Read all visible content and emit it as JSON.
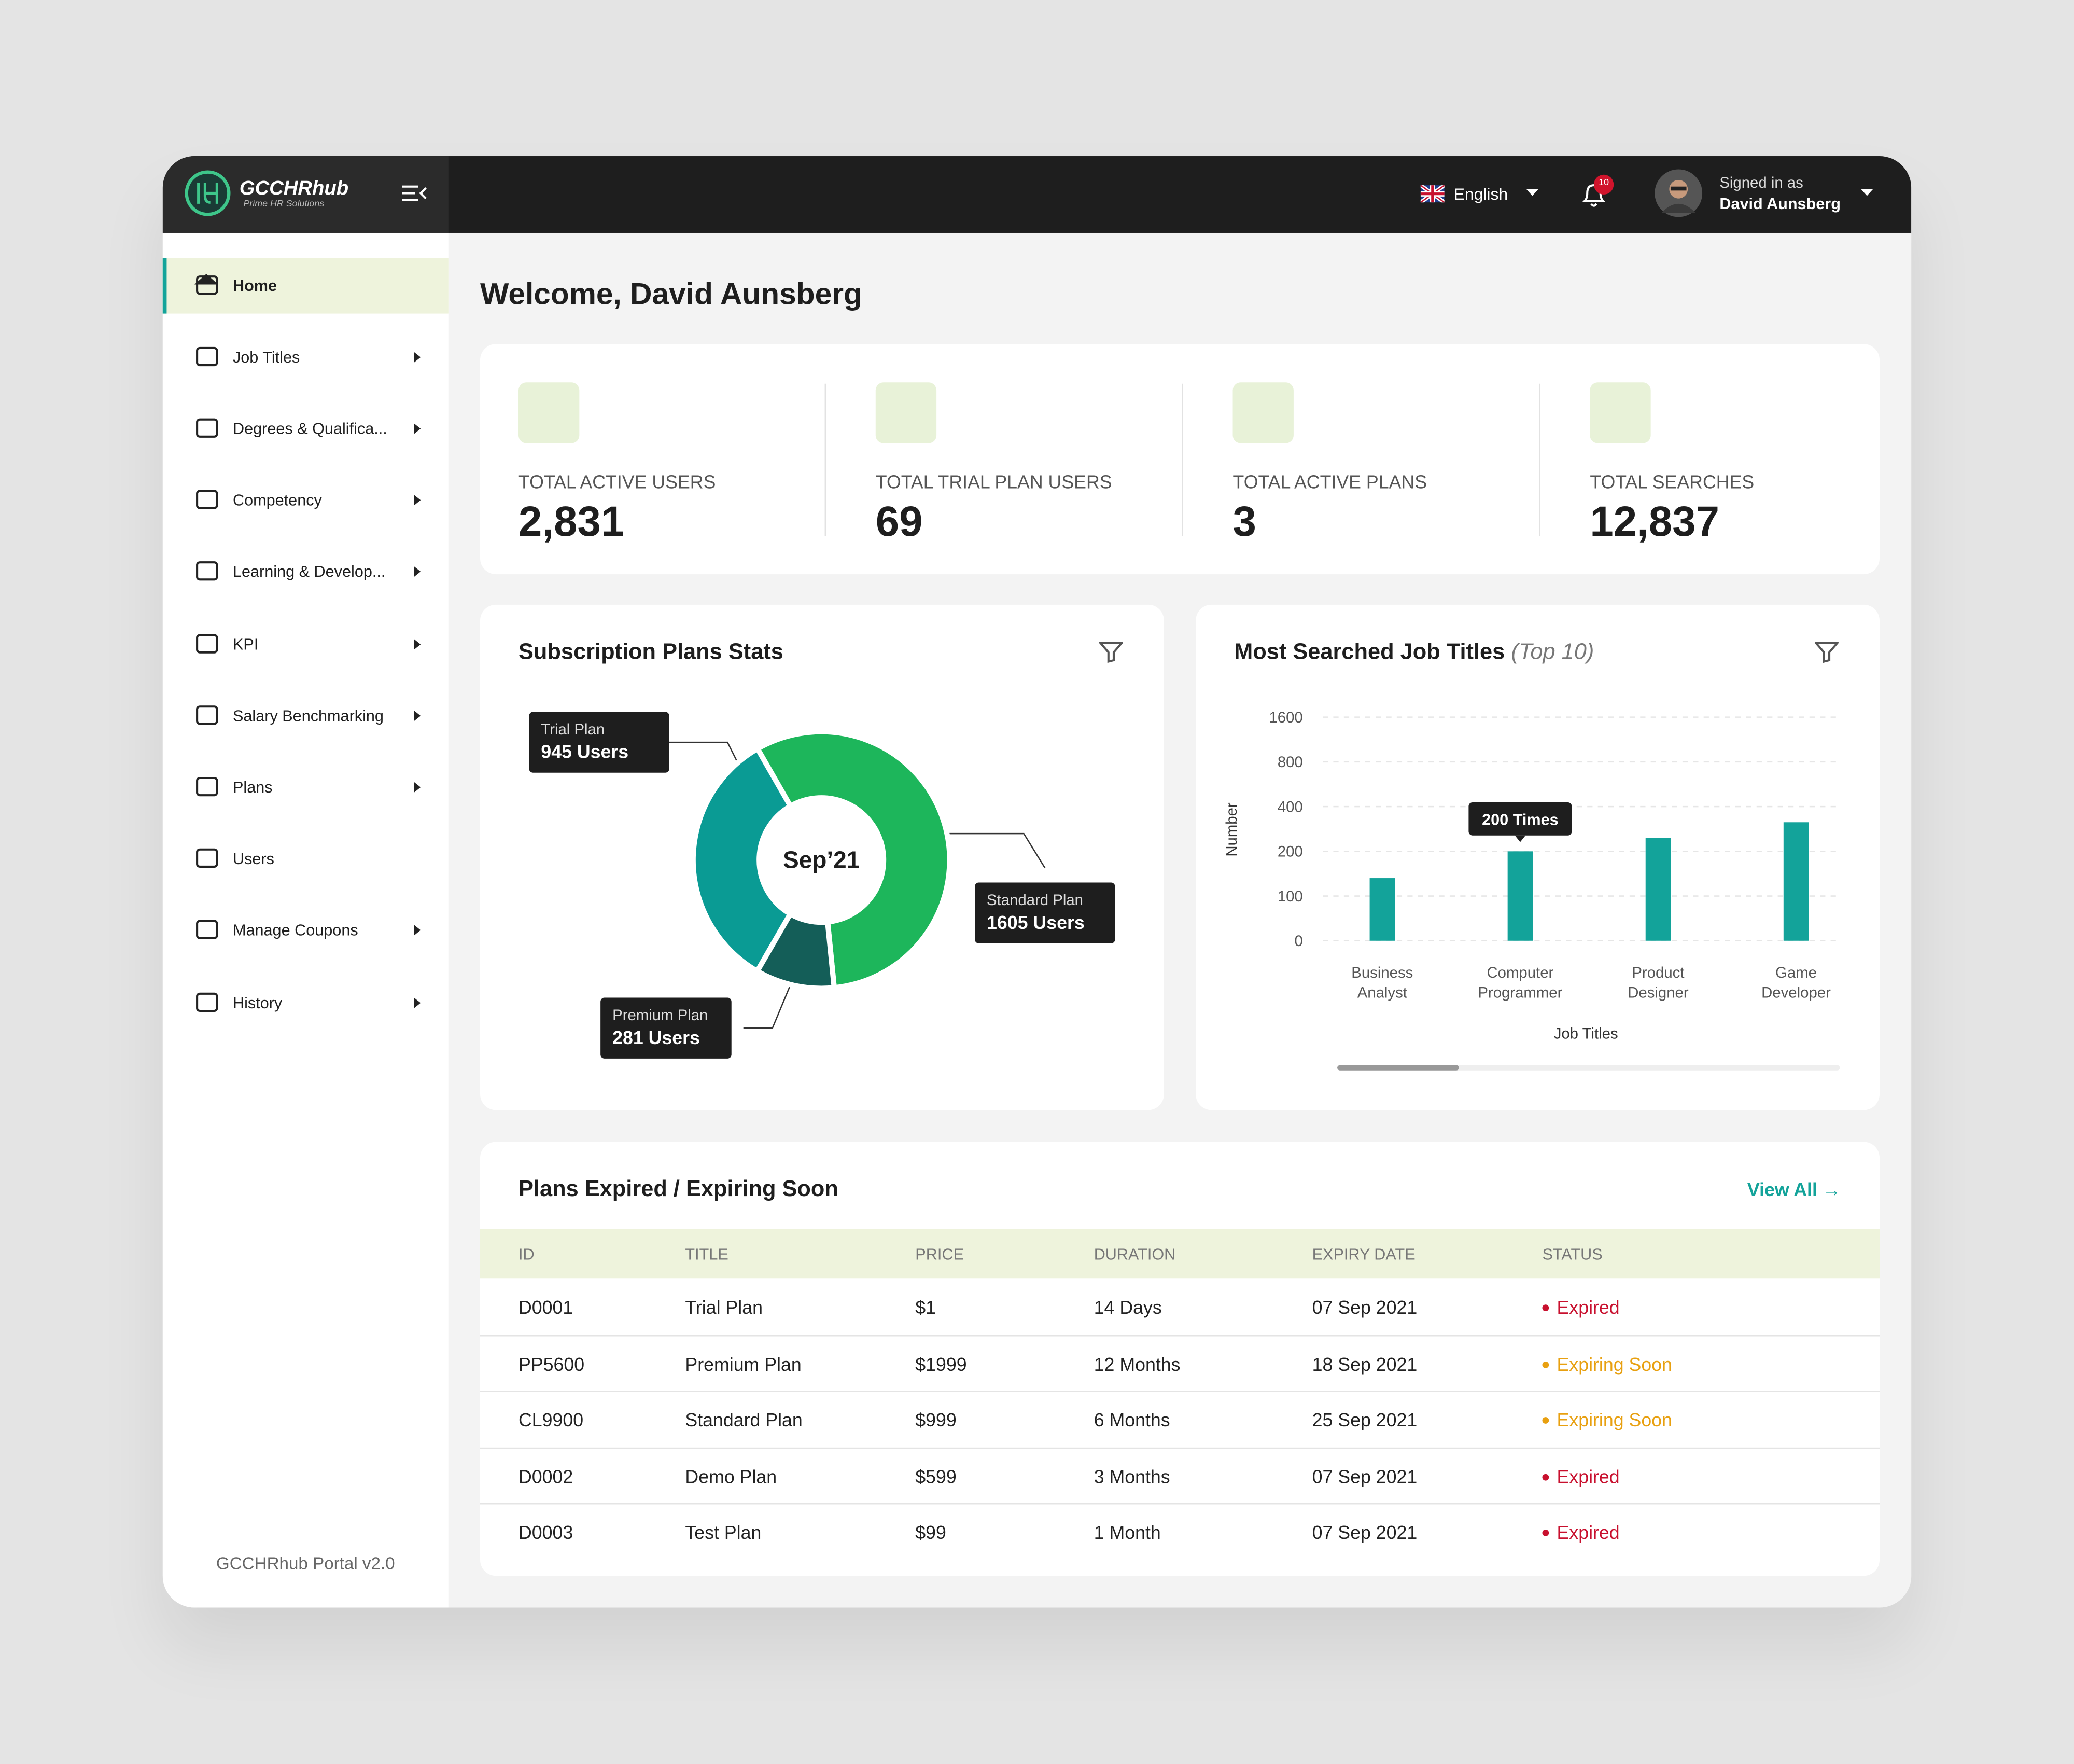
{
  "header": {
    "brand": "GCCHRhub",
    "tagline": "Prime HR Solutions",
    "language": "English",
    "notification_count": "10",
    "signed_in_label": "Signed in as",
    "user_name": "David Aunsberg"
  },
  "sidebar": {
    "items": [
      "Home",
      "Job Titles",
      "Degrees & Qualifica...",
      "Competency",
      "Learning & Develop...",
      "KPI",
      "Salary Benchmarking",
      "Plans",
      "Users",
      "Manage Coupons",
      "History"
    ],
    "footer": "GCCHRhub Portal v2.0"
  },
  "welcome": "Welcome, David Aunsberg",
  "stats": [
    {
      "label": "TOTAL ACTIVE USERS",
      "value": "2,831"
    },
    {
      "label": "TOTAL TRIAL PLAN USERS",
      "value": "69"
    },
    {
      "label": "TOTAL ACTIVE PLANS",
      "value": "3"
    },
    {
      "label": "TOTAL SEARCHES",
      "value": "12,837"
    }
  ],
  "subscription_chart": {
    "type": "donut",
    "title": "Subscription Plans Stats",
    "center_label": "Sep’21",
    "categories": [
      "Trial Plan",
      "Standard Plan",
      "Premium Plan"
    ],
    "values": [
      945,
      1605,
      281
    ],
    "value_labels": [
      "945 Users",
      "1605 Users",
      "281 Users"
    ],
    "colors": [
      "#0a9b94",
      "#1db65b",
      "#145e58"
    ]
  },
  "search_chart": {
    "type": "bar",
    "title": "Most Searched Job Titles",
    "subtitle": "(Top 10)",
    "x_label": "Job Titles",
    "y_label": "Number",
    "categories": [
      "Business Analyst",
      "Computer Programmer",
      "Product Designer",
      "Game Developer"
    ],
    "values": [
      140,
      200,
      260,
      330
    ],
    "value_labels": [
      null,
      "200 Times",
      null,
      null
    ],
    "color": "#13a39a",
    "ylim": [
      0,
      1600
    ],
    "yticks": [
      0,
      100,
      200,
      400,
      800,
      1600
    ],
    "y_scale": "tick-spaced",
    "grid": true
  },
  "table": {
    "title": "Plans Expired / Expiring Soon",
    "link": "View All →",
    "columns": [
      "ID",
      "TITLE",
      "PRICE",
      "DURATION",
      "EXPIRY DATE",
      "STATUS"
    ],
    "rows": [
      [
        "D0001",
        "Trial Plan",
        "$1",
        "14 Days",
        "07 Sep 2021",
        "Expired"
      ],
      [
        "PP5600",
        "Premium Plan",
        "$1999",
        "12 Months",
        "18 Sep 2021",
        "Expiring Soon"
      ],
      [
        "CL9900",
        "Standard Plan",
        "$999",
        "6 Months",
        "25 Sep 2021",
        "Expiring Soon"
      ],
      [
        "D0002",
        "Demo Plan",
        "$599",
        "3 Months",
        "07 Sep 2021",
        "Expired"
      ],
      [
        "D0003",
        "Test Plan",
        "$99",
        "1 Month",
        "07 Sep 2021",
        "Expired"
      ]
    ],
    "status_colors": [
      "#c8102e",
      "#e8a010",
      "#e8a010",
      "#c8102e",
      "#c8102e"
    ]
  }
}
